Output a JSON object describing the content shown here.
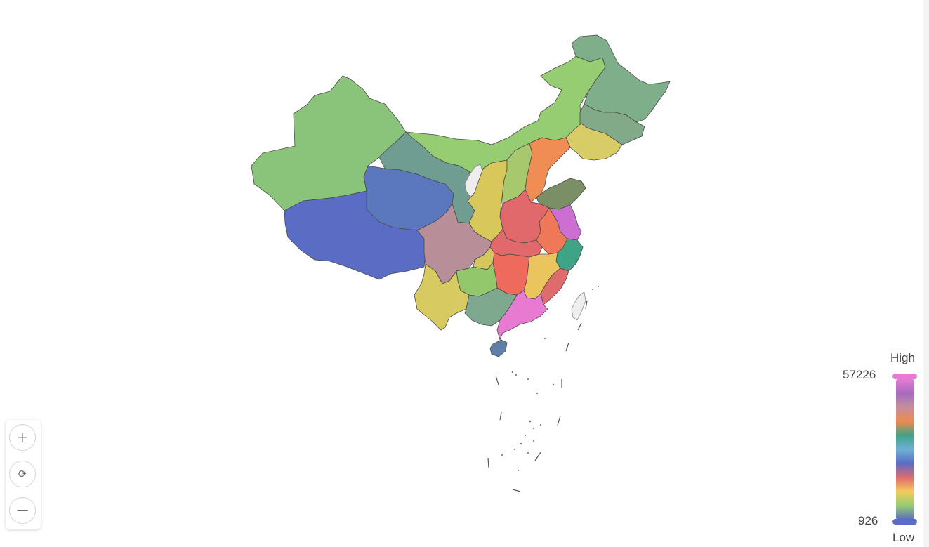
{
  "map": {
    "provinces": [
      {
        "name": "Xinjiang",
        "color": "#89c47a"
      },
      {
        "name": "Tibet",
        "color": "#5a6cc4"
      },
      {
        "name": "Qinghai",
        "color": "#5b77bd"
      },
      {
        "name": "Gansu",
        "color": "#6f9d92"
      },
      {
        "name": "Inner Mongolia",
        "color": "#96cc72"
      },
      {
        "name": "Heilongjiang",
        "color": "#7fae8a"
      },
      {
        "name": "Jilin",
        "color": "#82aa88"
      },
      {
        "name": "Liaoning",
        "color": "#d7cc66"
      },
      {
        "name": "Ningxia",
        "color": "#eeeeee"
      },
      {
        "name": "Shaanxi",
        "color": "#d8c85c"
      },
      {
        "name": "Shanxi",
        "color": "#a8c86d"
      },
      {
        "name": "Hebei",
        "color": "#ef8d55"
      },
      {
        "name": "Shandong",
        "color": "#7a8f65"
      },
      {
        "name": "Henan",
        "color": "#e1686b"
      },
      {
        "name": "Jiangsu",
        "color": "#cc6ed2"
      },
      {
        "name": "Anhui",
        "color": "#ee7857"
      },
      {
        "name": "Zhejiang",
        "color": "#3fa386"
      },
      {
        "name": "Hubei",
        "color": "#e1696b"
      },
      {
        "name": "Sichuan",
        "color": "#b88f99"
      },
      {
        "name": "Chongqing",
        "color": "#d5c75e"
      },
      {
        "name": "Hunan",
        "color": "#ee6a5d"
      },
      {
        "name": "Jiangxi",
        "color": "#eac45d"
      },
      {
        "name": "Fujian",
        "color": "#e06b6d"
      },
      {
        "name": "Guizhou",
        "color": "#93c76c"
      },
      {
        "name": "Yunnan",
        "color": "#d6ca60"
      },
      {
        "name": "Guangxi",
        "color": "#7fa98e"
      },
      {
        "name": "Guangdong",
        "color": "#e87ad2"
      },
      {
        "name": "Hainan",
        "color": "#5e7fa8"
      },
      {
        "name": "Taiwan",
        "color": "#eeeeee"
      }
    ]
  },
  "zoom": {
    "zoom_in_icon": "plus-icon",
    "reset_icon": "refresh-icon",
    "zoom_out_icon": "minus-icon",
    "zoom_in_glyph": "+",
    "reset_glyph": "⟳",
    "zoom_out_glyph": "−"
  },
  "legend": {
    "high_label": "High",
    "low_label": "Low",
    "max_value": "57226",
    "min_value": "926",
    "gradient_colors": [
      "#e87ad2",
      "#a66bc0",
      "#c48f9b",
      "#ef8a4f",
      "#3fa386",
      "#6fb0d6",
      "#5a6cc4",
      "#e06b6d",
      "#f4cc5b",
      "#96cc72",
      "#5a6cc4"
    ]
  }
}
